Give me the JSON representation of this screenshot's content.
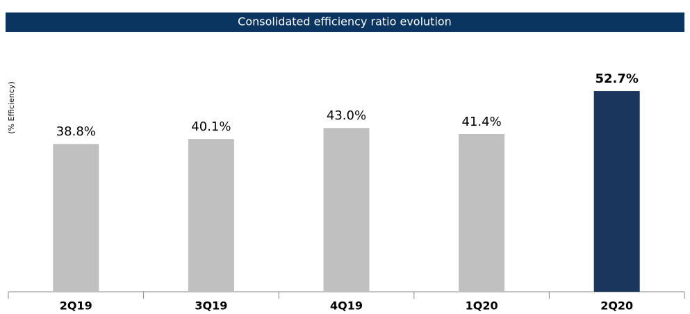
{
  "chart_data": {
    "type": "bar",
    "title": "Consolidated efficiency ratio evolution",
    "y_label": "(% Efficiency)",
    "categories": [
      "2Q19",
      "3Q19",
      "4Q19",
      "1Q20",
      "2Q20"
    ],
    "values": [
      38.8,
      40.1,
      43.0,
      41.4,
      52.7
    ],
    "value_labels": [
      "38.8%",
      "40.1%",
      "43.0%",
      "41.4%",
      "52.7%"
    ],
    "colors": [
      "#c0c0c0",
      "#c0c0c0",
      "#c0c0c0",
      "#c0c0c0",
      "#1b365d"
    ],
    "title_background": "#0b3561",
    "ylim": [
      0,
      60
    ]
  }
}
